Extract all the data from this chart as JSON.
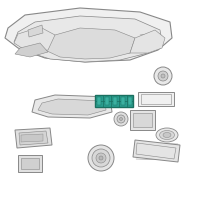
{
  "bg_color": "#ffffff",
  "line_color": "#888888",
  "highlight_color": "#2a9d8f",
  "highlight_dark": "#1a7060",
  "lw": 0.6,
  "fig_size": [
    2.0,
    2.0
  ],
  "dpi": 100
}
